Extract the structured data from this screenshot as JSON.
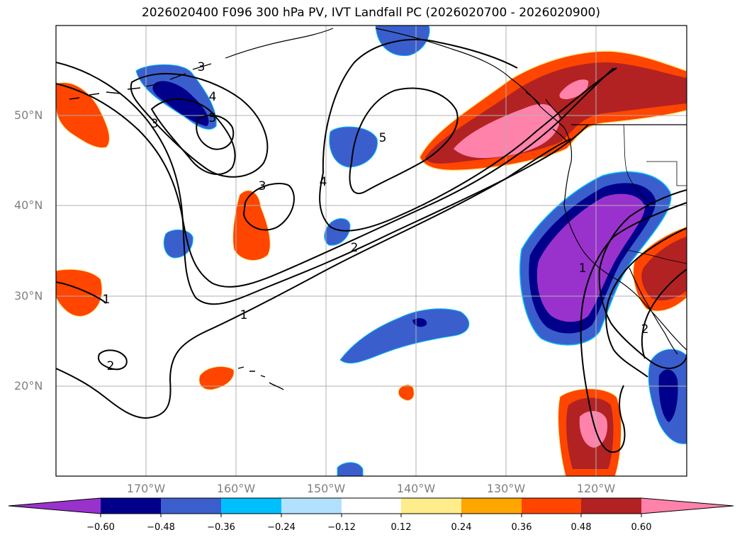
{
  "title": "2026020400 F096 300 hPa PV, IVT Landfall PC (2026020700 - 2026020900)",
  "axes": {
    "lat_labels": [
      "50°N",
      "40°N",
      "30°N",
      "20°N"
    ],
    "lon_labels": [
      "170°W",
      "160°W",
      "150°W",
      "140°W",
      "130°W",
      "120°W"
    ]
  },
  "colorbar": {
    "tick_labels": [
      "−0.60",
      "−0.48",
      "−0.36",
      "−0.24",
      "−0.12",
      "0.12",
      "0.24",
      "0.36",
      "0.48",
      "0.60"
    ],
    "colors": [
      "#9932cc",
      "#00008b",
      "#3a5fcd",
      "#00bfff",
      "#b0e2ff",
      "#ffffff",
      "#ffec8b",
      "#ffa500",
      "#ff4500",
      "#b22222",
      "#ff82ab"
    ]
  },
  "contour_labels": [
    {
      "id": "c1a",
      "text": "1"
    },
    {
      "id": "c1b",
      "text": "1"
    },
    {
      "id": "c1c",
      "text": "1"
    },
    {
      "id": "c2a",
      "text": "2"
    },
    {
      "id": "c2b",
      "text": "2"
    },
    {
      "id": "c2c",
      "text": "2"
    },
    {
      "id": "c3a",
      "text": "3"
    },
    {
      "id": "c3b",
      "text": "3"
    },
    {
      "id": "c3c",
      "text": "3"
    },
    {
      "id": "c4a",
      "text": "4"
    },
    {
      "id": "c4b",
      "text": "4"
    },
    {
      "id": "c5a",
      "text": "5"
    },
    {
      "id": "c5b",
      "text": "5"
    }
  ]
}
